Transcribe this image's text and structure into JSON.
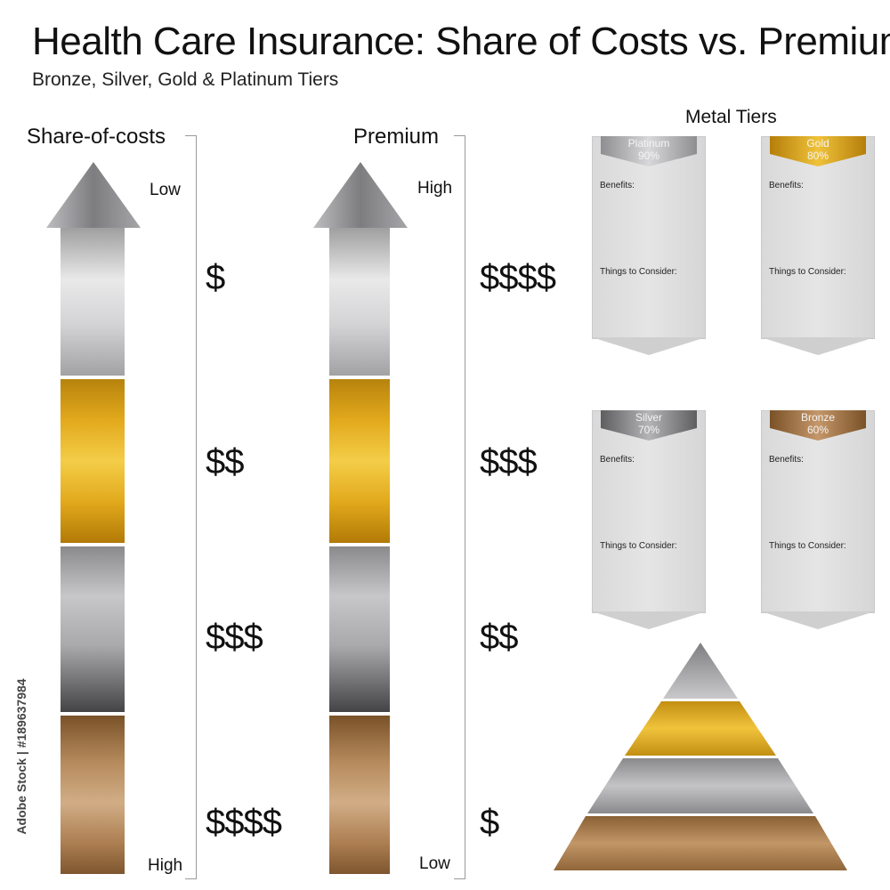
{
  "header": {
    "title": "Health Care Insurance: Share of Costs vs. Premiums",
    "subtitle": "Bronze, Silver, Gold & Platinum Tiers"
  },
  "share_of_costs": {
    "heading": "Share-of-costs",
    "top_label": "Low",
    "bottom_label": "High",
    "levels": [
      "$",
      "$$",
      "$$$",
      "$$$$"
    ]
  },
  "premium": {
    "heading": "Premium",
    "top_label": "High",
    "bottom_label": "Low",
    "levels": [
      "$$$$",
      "$$$",
      "$$",
      "$"
    ]
  },
  "metal_tiers": {
    "heading": "Metal Tiers",
    "cards": [
      {
        "name": "Platinum",
        "percent": "90%",
        "benefits_label": "Benefits:",
        "consider_label": "Things to Consider:"
      },
      {
        "name": "Gold",
        "percent": "80%",
        "benefits_label": "Benefits:",
        "consider_label": "Things to Consider:"
      },
      {
        "name": "Silver",
        "percent": "70%",
        "benefits_label": "Benefits:",
        "consider_label": "Things to Consider:"
      },
      {
        "name": "Bronze",
        "percent": "60%",
        "benefits_label": "Benefits:",
        "consider_label": "Things to Consider:"
      }
    ]
  },
  "watermark": {
    "side_text": "Adobe Stock | #189637984"
  },
  "colors": {
    "platinum": "#b8b8ba",
    "gold": "#e0a71b",
    "silver": "#8f8f91",
    "bronze": "#a77b4e"
  }
}
